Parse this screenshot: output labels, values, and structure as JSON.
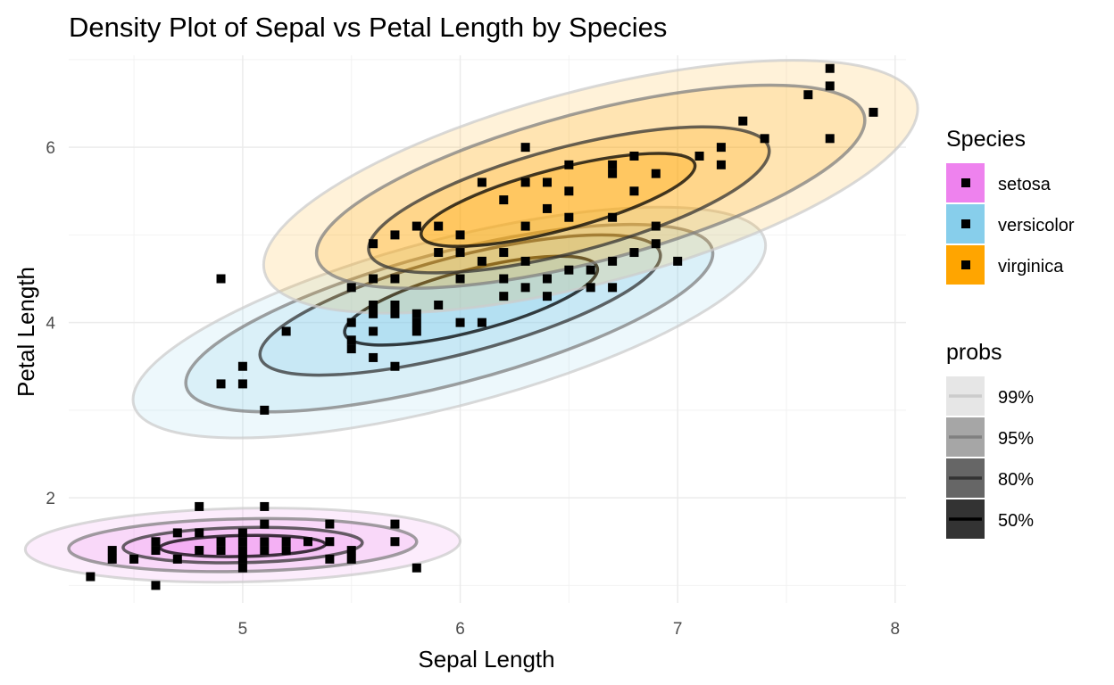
{
  "chart_data": {
    "type": "scatter",
    "title": "Density Plot of Sepal vs Petal Length by Species",
    "xlabel": "Sepal Length",
    "ylabel": "Petal Length",
    "xlim": [
      4.2,
      8.05
    ],
    "ylim": [
      0.8,
      7.05
    ],
    "x_ticks": [
      5,
      6,
      7,
      8
    ],
    "y_ticks": [
      2,
      4,
      6
    ],
    "grid": true,
    "legend_position": "right",
    "overlay": "2D density contours (filled) with scatter points",
    "legend_species": {
      "title": "Species",
      "entries": [
        {
          "name": "setosa",
          "color": "#EE82EE"
        },
        {
          "name": "versicolor",
          "color": "#87CEEB"
        },
        {
          "name": "virginica",
          "color": "#FFA500"
        }
      ]
    },
    "legend_probs": {
      "title": "probs",
      "entries": [
        {
          "label": "99%",
          "fill": "#e6e6e6",
          "stroke": "#cccccc"
        },
        {
          "label": "95%",
          "fill": "#a6a6a6",
          "stroke": "#808080"
        },
        {
          "label": "80%",
          "fill": "#666666",
          "stroke": "#333333"
        },
        {
          "label": "50%",
          "fill": "#333333",
          "stroke": "#000000"
        }
      ]
    },
    "series": [
      {
        "name": "setosa",
        "color": "#EE82EE",
        "contours": [
          {
            "prob": "99%",
            "cx": 5.0,
            "cy": 1.46,
            "rx": 1.0,
            "ry": 0.42
          },
          {
            "prob": "95%",
            "cx": 5.0,
            "cy": 1.46,
            "rx": 0.8,
            "ry": 0.3
          },
          {
            "prob": "80%",
            "cx": 5.0,
            "cy": 1.46,
            "rx": 0.55,
            "ry": 0.2
          },
          {
            "prob": "50%",
            "cx": 5.0,
            "cy": 1.45,
            "rx": 0.38,
            "ry": 0.12
          }
        ],
        "points": [
          [
            4.3,
            1.1
          ],
          [
            4.4,
            1.4
          ],
          [
            4.4,
            1.3
          ],
          [
            4.5,
            1.3
          ],
          [
            4.6,
            1.0
          ],
          [
            4.6,
            1.4
          ],
          [
            4.6,
            1.5
          ],
          [
            4.7,
            1.3
          ],
          [
            4.7,
            1.6
          ],
          [
            4.8,
            1.9
          ],
          [
            4.8,
            1.6
          ],
          [
            4.8,
            1.4
          ],
          [
            4.9,
            1.4
          ],
          [
            4.9,
            1.5
          ],
          [
            5.0,
            1.2
          ],
          [
            5.0,
            1.3
          ],
          [
            5.0,
            1.4
          ],
          [
            5.0,
            1.5
          ],
          [
            5.0,
            1.6
          ],
          [
            5.1,
            1.9
          ],
          [
            5.1,
            1.4
          ],
          [
            5.1,
            1.5
          ],
          [
            5.1,
            1.7
          ],
          [
            5.2,
            1.4
          ],
          [
            5.2,
            1.5
          ],
          [
            5.3,
            1.5
          ],
          [
            5.4,
            1.7
          ],
          [
            5.4,
            1.5
          ],
          [
            5.4,
            1.3
          ],
          [
            5.5,
            1.4
          ],
          [
            5.5,
            1.3
          ],
          [
            5.7,
            1.7
          ],
          [
            5.7,
            1.5
          ],
          [
            5.8,
            1.2
          ]
        ]
      },
      {
        "name": "versicolor",
        "color": "#87CEEB",
        "contours": [
          {
            "prob": "99%",
            "cx": 5.95,
            "cy": 4.0,
            "rx": 1.5,
            "ry": 0.95
          },
          {
            "prob": "95%",
            "cx": 5.95,
            "cy": 4.05,
            "rx": 1.25,
            "ry": 0.75
          },
          {
            "prob": "80%",
            "cx": 6.0,
            "cy": 4.2,
            "rx": 0.95,
            "ry": 0.55
          },
          {
            "prob": "50%",
            "cx": 6.05,
            "cy": 4.25,
            "rx": 0.6,
            "ry": 0.35
          }
        ],
        "points": [
          [
            4.9,
            3.3
          ],
          [
            5.0,
            3.3
          ],
          [
            5.0,
            3.5
          ],
          [
            5.1,
            3.0
          ],
          [
            5.2,
            3.9
          ],
          [
            5.5,
            4.0
          ],
          [
            5.5,
            3.7
          ],
          [
            5.5,
            3.8
          ],
          [
            5.5,
            4.4
          ],
          [
            5.6,
            3.6
          ],
          [
            5.6,
            3.9
          ],
          [
            5.6,
            4.1
          ],
          [
            5.6,
            4.2
          ],
          [
            5.6,
            4.5
          ],
          [
            5.7,
            3.5
          ],
          [
            5.7,
            4.1
          ],
          [
            5.7,
            4.2
          ],
          [
            5.7,
            4.5
          ],
          [
            5.8,
            3.9
          ],
          [
            5.8,
            4.0
          ],
          [
            5.8,
            4.1
          ],
          [
            5.9,
            4.2
          ],
          [
            5.9,
            4.8
          ],
          [
            6.0,
            4.0
          ],
          [
            6.0,
            4.5
          ],
          [
            6.1,
            4.0
          ],
          [
            6.1,
            4.7
          ],
          [
            6.2,
            4.3
          ],
          [
            6.2,
            4.5
          ],
          [
            6.3,
            4.4
          ],
          [
            6.3,
            4.7
          ],
          [
            6.4,
            4.3
          ],
          [
            6.4,
            4.5
          ],
          [
            6.5,
            4.6
          ],
          [
            6.6,
            4.4
          ],
          [
            6.6,
            4.6
          ],
          [
            6.7,
            4.4
          ],
          [
            6.7,
            4.7
          ],
          [
            6.8,
            4.8
          ],
          [
            6.9,
            4.9
          ],
          [
            7.0,
            4.7
          ]
        ]
      },
      {
        "name": "virginica",
        "color": "#FFA500",
        "contours": [
          {
            "prob": "99%",
            "cx": 6.6,
            "cy": 5.55,
            "rx": 1.55,
            "ry": 1.1
          },
          {
            "prob": "95%",
            "cx": 6.6,
            "cy": 5.55,
            "rx": 1.3,
            "ry": 0.85
          },
          {
            "prob": "80%",
            "cx": 6.5,
            "cy": 5.4,
            "rx": 0.95,
            "ry": 0.6
          },
          {
            "prob": "50%",
            "cx": 6.45,
            "cy": 5.4,
            "rx": 0.65,
            "ry": 0.35
          }
        ],
        "points": [
          [
            4.9,
            4.5
          ],
          [
            5.6,
            4.9
          ],
          [
            5.7,
            5.0
          ],
          [
            5.8,
            5.1
          ],
          [
            5.9,
            5.1
          ],
          [
            6.0,
            5.0
          ],
          [
            6.0,
            4.8
          ],
          [
            6.1,
            5.6
          ],
          [
            6.2,
            5.4
          ],
          [
            6.2,
            4.8
          ],
          [
            6.3,
            6.0
          ],
          [
            6.3,
            5.6
          ],
          [
            6.3,
            5.1
          ],
          [
            6.4,
            5.6
          ],
          [
            6.4,
            5.3
          ],
          [
            6.5,
            5.8
          ],
          [
            6.5,
            5.5
          ],
          [
            6.5,
            5.2
          ],
          [
            6.7,
            5.8
          ],
          [
            6.7,
            5.7
          ],
          [
            6.7,
            5.2
          ],
          [
            6.8,
            5.5
          ],
          [
            6.8,
            5.9
          ],
          [
            6.9,
            5.7
          ],
          [
            6.9,
            5.1
          ],
          [
            7.1,
            5.9
          ],
          [
            7.2,
            6.0
          ],
          [
            7.2,
            5.8
          ],
          [
            7.3,
            6.3
          ],
          [
            7.4,
            6.1
          ],
          [
            7.6,
            6.6
          ],
          [
            7.7,
            6.7
          ],
          [
            7.7,
            6.9
          ],
          [
            7.7,
            6.1
          ],
          [
            7.9,
            6.4
          ]
        ]
      }
    ]
  }
}
